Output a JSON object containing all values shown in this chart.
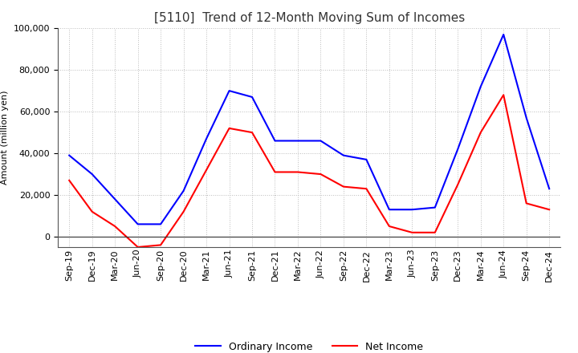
{
  "title": "[5110]  Trend of 12-Month Moving Sum of Incomes",
  "ylabel": "Amount (million yen)",
  "x_labels": [
    "Sep-19",
    "Dec-19",
    "Mar-20",
    "Jun-20",
    "Sep-20",
    "Dec-20",
    "Mar-21",
    "Jun-21",
    "Sep-21",
    "Dec-21",
    "Mar-22",
    "Jun-22",
    "Sep-22",
    "Dec-22",
    "Mar-23",
    "Jun-23",
    "Sep-23",
    "Dec-23",
    "Mar-24",
    "Jun-24",
    "Sep-24",
    "Dec-24"
  ],
  "ordinary_income": [
    39000,
    30000,
    18000,
    6000,
    6000,
    22000,
    47000,
    70000,
    67000,
    46000,
    46000,
    46000,
    39000,
    37000,
    13000,
    13000,
    14000,
    42000,
    72000,
    97000,
    57000,
    23000
  ],
  "net_income": [
    27000,
    12000,
    5000,
    -5000,
    -4000,
    12000,
    32000,
    52000,
    50000,
    31000,
    31000,
    30000,
    24000,
    23000,
    5000,
    2000,
    2000,
    25000,
    50000,
    68000,
    16000,
    13000
  ],
  "ordinary_color": "#0000FF",
  "net_color": "#FF0000",
  "ylim": [
    -5000,
    100000
  ],
  "yticks": [
    0,
    20000,
    40000,
    60000,
    80000,
    100000
  ],
  "grid_color": "#bbbbbb",
  "background_color": "#ffffff",
  "title_fontsize": 11,
  "axis_label_fontsize": 8,
  "tick_fontsize": 8,
  "legend_fontsize": 9
}
